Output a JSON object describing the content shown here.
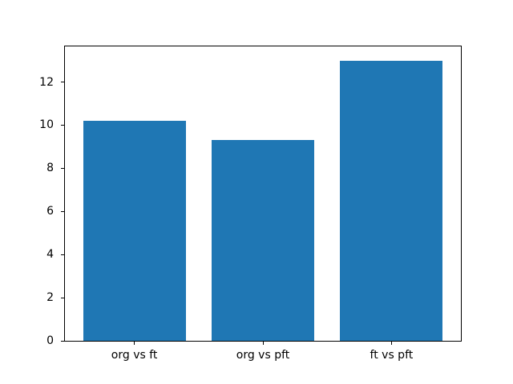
{
  "chart_data": {
    "type": "bar",
    "categories": [
      "org vs ft",
      "org vs pft",
      "ft vs pft"
    ],
    "values": [
      10.2,
      9.3,
      13.0
    ],
    "title": "",
    "xlabel": "",
    "ylabel": "",
    "ylim": [
      0,
      13.65
    ],
    "xlim": [
      -0.54,
      2.54
    ],
    "yticks": [
      0,
      2,
      4,
      6,
      8,
      10,
      12
    ],
    "ytick_labels": [
      "0",
      "2",
      "4",
      "6",
      "8",
      "10",
      "12"
    ],
    "bar_width": 0.8,
    "bar_color": "#1f77b4",
    "spine_color": "#000000",
    "text_color": "#000000",
    "background_color": "#ffffff",
    "grid": false,
    "legend": null
  }
}
